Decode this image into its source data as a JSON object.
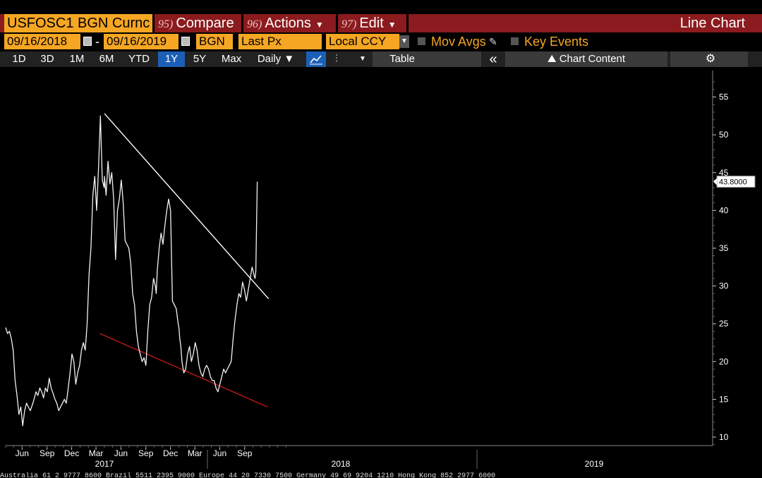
{
  "toolbar": {
    "ticker": "USFOSC1 BGN Curnc",
    "compare_num": "95)",
    "compare": "Compare",
    "actions_num": "96)",
    "actions": "Actions",
    "edit_num": "97)",
    "edit": "Edit",
    "chart_title": "Line Chart"
  },
  "settings": {
    "start_date": "09/16/2018",
    "end_date": "09/16/2019",
    "source": "BGN",
    "field": "Last Px",
    "currency": "Local CCY",
    "mov_avgs": "Mov Avgs",
    "key_events": "Key Events"
  },
  "periods": [
    "1D",
    "3D",
    "1M",
    "6M",
    "YTD",
    "1Y",
    "5Y",
    "Max"
  ],
  "selected_period": "1Y",
  "frequency": "Daily ▼",
  "table_label": "Table",
  "collapse_label": "«",
  "chart_content_label": "Chart Content",
  "colors": {
    "accent": "#f5a623",
    "header": "#8b1b1e",
    "selected": "#1c5fb6",
    "support": "#c01818",
    "resistance": "#ffffff"
  },
  "chart_data": {
    "type": "line",
    "ylim": [
      9,
      57
    ],
    "y_ticks": [
      10,
      15,
      20,
      25,
      30,
      35,
      40,
      45,
      50,
      55
    ],
    "x_tick_labels": [
      "Jun",
      "Sep",
      "Dec",
      "Mar",
      "Jun",
      "Sep",
      "Dec",
      "Mar",
      "Jun",
      "Sep"
    ],
    "year_labels": [
      "2017",
      "2018",
      "2019"
    ],
    "last_value_label": "43.8000",
    "last_value": 43.8,
    "series": [
      {
        "x": [
          "2017-03-01",
          "2017-03-08",
          "2017-03-15",
          "2017-03-22",
          "2017-03-29",
          "2017-04-05",
          "2017-04-12",
          "2017-04-19",
          "2017-04-26",
          "2017-05-03",
          "2017-05-10",
          "2017-05-17",
          "2017-05-24",
          "2017-05-31",
          "2017-06-07",
          "2017-06-14",
          "2017-06-21",
          "2017-06-28",
          "2017-07-05",
          "2017-07-12",
          "2017-07-19",
          "2017-07-26",
          "2017-08-02",
          "2017-08-09",
          "2017-08-16",
          "2017-08-23",
          "2017-08-30",
          "2017-09-06",
          "2017-09-13",
          "2017-09-20",
          "2017-09-27",
          "2017-10-04",
          "2017-10-11",
          "2017-10-18",
          "2017-10-25",
          "2017-11-01",
          "2017-11-08",
          "2017-11-15",
          "2017-11-22",
          "2017-11-29",
          "2017-12-06",
          "2017-12-13",
          "2017-12-20",
          "2017-12-27",
          "2018-01-03",
          "2018-01-10",
          "2018-01-17",
          "2018-01-24",
          "2018-01-31",
          "2018-02-07",
          "2018-02-14",
          "2018-02-21",
          "2018-02-28",
          "2018-03-01",
          "2018-03-07",
          "2018-03-14",
          "2018-03-21",
          "2018-03-28",
          "2018-04-04",
          "2018-04-11",
          "2018-04-18",
          "2018-04-25",
          "2018-05-02",
          "2018-05-09",
          "2018-05-16",
          "2018-05-23",
          "2018-05-30",
          "2018-06-06",
          "2018-06-13",
          "2018-06-20",
          "2018-06-27",
          "2018-07-04",
          "2018-07-11",
          "2018-07-18",
          "2018-07-25",
          "2018-08-01",
          "2018-08-08",
          "2018-08-15",
          "2018-08-22",
          "2018-08-29",
          "2018-09-05",
          "2018-09-08",
          "2018-09-12",
          "2018-09-19",
          "2018-09-26",
          "2018-10-03",
          "2018-10-10",
          "2018-10-17",
          "2018-10-24",
          "2018-10-31",
          "2018-11-07",
          "2018-11-14",
          "2018-11-21",
          "2018-11-28",
          "2018-12-01",
          "2018-12-04",
          "2018-12-08",
          "2018-12-12",
          "2018-12-19",
          "2018-12-26",
          "2019-01-02",
          "2019-01-09",
          "2019-01-16",
          "2019-01-23",
          "2019-01-30",
          "2019-02-06",
          "2019-02-13",
          "2019-02-20",
          "2019-02-27",
          "2019-03-06",
          "2019-03-13",
          "2019-03-20",
          "2019-03-27",
          "2019-04-03",
          "2019-04-10",
          "2019-04-17",
          "2019-04-24",
          "2019-05-01",
          "2019-05-08",
          "2019-05-15",
          "2019-05-22",
          "2019-05-29",
          "2019-06-05",
          "2019-06-12",
          "2019-06-19",
          "2019-06-26",
          "2019-07-03",
          "2019-07-10",
          "2019-07-17",
          "2019-07-24",
          "2019-07-31",
          "2019-08-07",
          "2019-08-14",
          "2019-08-21",
          "2019-08-28",
          "2019-09-04",
          "2019-09-08",
          "2019-09-11",
          "2019-09-16"
        ],
        "y": [
          24.5,
          23.7,
          24.0,
          23.0,
          21.5,
          17.5,
          15.5,
          13.0,
          14.0,
          11.5,
          13.5,
          14.5,
          14.0,
          13.5,
          14.2,
          15.0,
          16.0,
          15.5,
          16.5,
          16.0,
          15.2,
          16.5,
          16.0,
          17.8,
          16.5,
          15.8,
          15.0,
          14.5,
          13.5,
          14.0,
          14.5,
          15.0,
          14.5,
          16.5,
          18.5,
          21.0,
          20.0,
          17.0,
          18.5,
          19.5,
          21.5,
          22.5,
          21.5,
          25.0,
          31.5,
          35.0,
          42.0,
          44.5,
          40.0,
          45.5,
          52.5,
          44.0,
          43.0,
          44.5,
          42.0,
          46.5,
          43.5,
          45.0,
          41.5,
          33.5,
          40.0,
          41.5,
          44.0,
          41.0,
          36.0,
          35.5,
          35.0,
          33.0,
          29.0,
          27.5,
          24.0,
          22.0,
          21.0,
          20.0,
          20.5,
          19.5,
          24.0,
          27.5,
          28.5,
          31.0,
          30.0,
          29.0,
          32.0,
          35.0,
          37.0,
          35.5,
          38.0,
          40.0,
          41.5,
          40.0,
          28.0,
          27.5,
          27.0,
          25.0,
          24.5,
          23.0,
          22.0,
          20.0,
          18.5,
          19.0,
          21.0,
          22.0,
          20.0,
          21.0,
          22.5,
          21.5,
          19.5,
          18.5,
          18.0,
          19.0,
          19.5,
          19.0,
          18.0,
          17.5,
          17.5,
          16.5,
          16.0,
          17.0,
          18.0,
          19.0,
          18.5,
          19.0,
          19.5,
          20.0,
          23.0,
          25.5,
          27.5,
          29.0,
          28.5,
          30.5,
          29.5,
          28.0,
          29.5,
          31.0,
          32.5,
          31.5,
          31.0,
          32.0,
          43.8
        ]
      }
    ],
    "trendlines": [
      {
        "name": "resistance",
        "from": {
          "x": "2018-03-01",
          "y": 52.8
        },
        "to": {
          "x": "2019-10-28",
          "y": 28.3
        }
      },
      {
        "name": "support",
        "from": {
          "x": "2018-02-12",
          "y": 23.7
        },
        "to": {
          "x": "2019-10-24",
          "y": 14.0
        }
      }
    ]
  },
  "footer_text": "Australia 61 2 9777 8600 Brazil 5511 2395 9000 Europe 44 20 7330 7500 Germany 49 69 9204 1210 Hong Kong 852 2977 6000"
}
